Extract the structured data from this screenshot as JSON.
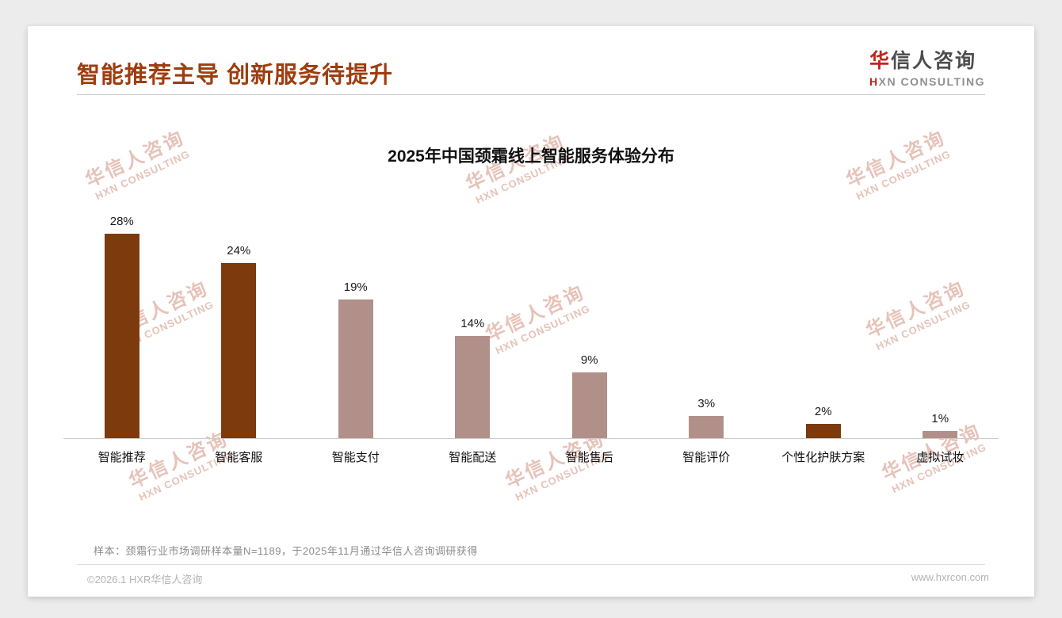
{
  "page": {
    "title": "智能推荐主导 创新服务待提升",
    "logo": {
      "cn_first": "华",
      "cn_rest": "信人咨询",
      "en_first": "H",
      "en_rest": "XN CONSULTING"
    },
    "watermark": {
      "cn": "华信人咨询",
      "en": "HXN CONSULTING"
    },
    "footnote": "样本：颈霜行业市场调研样本量N=1189，于2025年11月通过华信人咨询调研获得",
    "copyright": "©2026.1 HXR华信人咨询",
    "website": "www.hxrcon.com"
  },
  "chart_data": {
    "type": "bar",
    "title": "2025年中国颈霜线上智能服务体验分布",
    "categories": [
      "智能推荐",
      "智能客服",
      "智能支付",
      "智能配送",
      "智能售后",
      "智能评价",
      "个性化护肤方案",
      "虚拟试妆"
    ],
    "values": [
      28,
      24,
      19,
      14,
      9,
      3,
      2,
      1
    ],
    "labels": [
      "28%",
      "24%",
      "19%",
      "14%",
      "9%",
      "3%",
      "2%",
      "1%"
    ],
    "bar_colors": [
      "#7D3A0C",
      "#7D3A0C",
      "#B2908A",
      "#B2908A",
      "#B2908A",
      "#B2908A",
      "#7D3A0C",
      "#B2908A"
    ],
    "xlabel": "",
    "ylabel": "",
    "ylim": [
      0,
      30
    ],
    "grid": false,
    "legend": false
  },
  "colors": {
    "accent_title": "#9E3D10",
    "dark_bar": "#7D3A0C",
    "light_bar": "#B2908A",
    "watermark": "#E6C2B9",
    "logo_red": "#C0251C"
  }
}
